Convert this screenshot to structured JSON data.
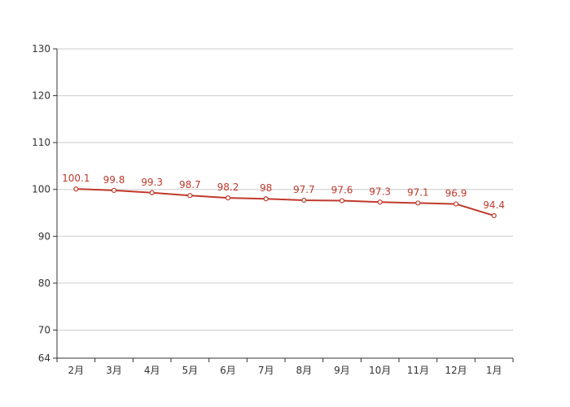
{
  "chart_data": {
    "type": "line",
    "categories": [
      "2月",
      "3月",
      "4月",
      "5月",
      "6月",
      "7月",
      "8月",
      "9月",
      "10月",
      "11月",
      "12月",
      "1月"
    ],
    "series": [
      {
        "values": [
          100.1,
          99.8,
          99.3,
          98.7,
          98.2,
          98,
          97.7,
          97.6,
          97.3,
          97.1,
          96.9,
          94.4
        ]
      }
    ],
    "data_labels": [
      "100.1",
      "99.8",
      "99.3",
      "98.7",
      "98.2",
      "98",
      "97.7",
      "97.6",
      "97.3",
      "97.1",
      "96.9",
      "94.4"
    ],
    "y_ticks": [
      64,
      70,
      80,
      90,
      100,
      110,
      120,
      130
    ],
    "y_tick_labels": [
      "64",
      "70",
      "80",
      "90",
      "100",
      "110",
      "120",
      "130"
    ],
    "ylim": [
      64,
      130
    ],
    "grid": true,
    "legend": "none",
    "colors": {
      "line": "#c0392b",
      "grid": "#cccccc",
      "axis": "#333333",
      "marker_fill": "#ffffff"
    }
  }
}
